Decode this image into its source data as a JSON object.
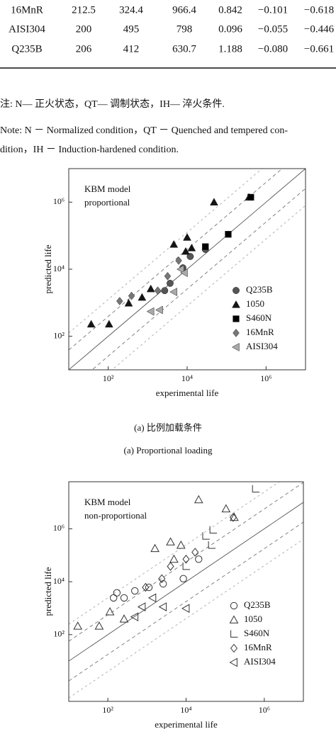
{
  "table": {
    "rows": [
      [
        "16MnR",
        "212.5",
        "324.4",
        "966.4",
        "0.842",
        "−0.101",
        "−0.618"
      ],
      [
        "AISI304",
        "200",
        "495",
        "798",
        "0.096",
        "−0.055",
        "−0.446"
      ],
      [
        "Q235B",
        "206",
        "412",
        "630.7",
        "1.188",
        "−0.080",
        "−0.661"
      ]
    ]
  },
  "notes": {
    "zh": "注: N— 正火状态，QT— 调制状态，IH— 淬火条件.",
    "en": [
      "Note: N － Normalized condition，QT － Quenched and tempered con-",
      "dition，IH － Induction-hardened condition."
    ]
  },
  "captions": {
    "zh": "(a) 比例加载条件",
    "en": "(a) Proportional loading"
  },
  "chart_data": [
    {
      "type": "scatter",
      "annotation": [
        "KBM model",
        "proportional"
      ],
      "xlabel": "experimental life",
      "ylabel": "predicted life",
      "log_x": true,
      "log_y": true,
      "legend": "lower right",
      "xlim": [
        10,
        10000000
      ],
      "ylim": [
        10,
        10000000
      ],
      "xticks": [
        {
          "value": 100,
          "label": "10²"
        },
        {
          "value": 10000,
          "label": "10⁴"
        },
        {
          "value": 1000000,
          "label": "10⁶"
        }
      ],
      "yticks": [
        {
          "value": 100,
          "label": "10²"
        },
        {
          "value": 10000,
          "label": "10⁴"
        },
        {
          "value": 1000000,
          "label": "10⁶"
        }
      ],
      "series": [
        {
          "name": "Q235B",
          "marker": "circle",
          "filled": true,
          "color": "#555555",
          "x": [
            2700,
            3700,
            12000,
            7800,
            29000
          ],
          "values": [
            2300,
            3800,
            24000,
            11000,
            39000
          ]
        },
        {
          "name": "1050",
          "marker": "triangle",
          "filled": true,
          "color": "#151515",
          "x": [
            37,
            105,
            330,
            720,
            1200,
            4600,
            9200,
            10000,
            13000,
            48000,
            370000
          ],
          "values": [
            230,
            230,
            970,
            1450,
            2600,
            55000,
            34000,
            89000,
            43000,
            1000000,
            1400000
          ]
        },
        {
          "name": "S460N",
          "marker": "square",
          "filled": true,
          "color": "#000000",
          "x": [
            29000,
            110000,
            410000
          ],
          "values": [
            47000,
            110000,
            1400000
          ]
        },
        {
          "name": "16MnR",
          "marker": "diamond",
          "filled": true,
          "color": "#777777",
          "x": [
            195,
            390,
            1800,
            3200,
            6100
          ],
          "values": [
            1120,
            1600,
            2300,
            6200,
            18000
          ]
        },
        {
          "name": "AISI304",
          "marker": "left",
          "filled": true,
          "color": "#aaaaaa",
          "x": [
            1200,
            2000,
            6900,
            8500,
            4600
          ],
          "values": [
            550,
            610,
            10000,
            7800,
            2100
          ]
        }
      ]
    },
    {
      "type": "scatter",
      "annotation": [
        "KBM model",
        "non-proportional"
      ],
      "xlabel": "experimental life",
      "ylabel": "predicted life",
      "log_x": true,
      "log_y": true,
      "legend": "lower right",
      "xlim": [
        10,
        10000000
      ],
      "ylim": [
        0.3,
        60000000
      ],
      "xticks": [
        {
          "value": 100,
          "label": "10²"
        },
        {
          "value": 10000,
          "label": "10⁴"
        },
        {
          "value": 1000000,
          "label": "10⁶"
        }
      ],
      "yticks": [
        {
          "value": 100,
          "label": "10²"
        },
        {
          "value": 10000,
          "label": "10⁴"
        },
        {
          "value": 1000000,
          "label": "10⁶"
        }
      ],
      "series": [
        {
          "name": "Q235B",
          "marker": "circle",
          "filled": false,
          "color": "#333333",
          "x": [
            140,
            170,
            260,
            490,
            1120,
            2600,
            8500,
            21000
          ],
          "values": [
            2450,
            3800,
            2450,
            4500,
            6100,
            8300,
            13000,
            71000
          ]
        },
        {
          "name": "1050",
          "marker": "triangle",
          "filled": false,
          "color": "#333333",
          "x": [
            17,
            60,
            113,
            260,
            1600,
            4000,
            4900,
            7400,
            21000,
            105000,
            170000
          ],
          "values": [
            210,
            210,
            730,
            390,
            180000,
            320000,
            71000,
            240000,
            12600000,
            5700000,
            2700000
          ]
        },
        {
          "name": "S460N",
          "marker": "ell",
          "filled": false,
          "color": "#333333",
          "x": [
            32000,
            49000,
            600000,
            45000,
            10000
          ],
          "values": [
            530000,
            900000,
            32000000,
            240000,
            38000
          ]
        },
        {
          "name": "16MnR",
          "marker": "diamond",
          "filled": false,
          "color": "#333333",
          "x": [
            920,
            2400,
            4000,
            10000,
            17000,
            160000
          ],
          "values": [
            6100,
            13000,
            38000,
            71000,
            130000,
            2700000
          ]
        },
        {
          "name": "AISI304",
          "marker": "left",
          "filled": false,
          "color": "#333333",
          "x": [
            490,
            750,
            1400,
            2600,
            10000
          ],
          "values": [
            470,
            1120,
            2450,
            1120,
            980
          ]
        }
      ]
    }
  ]
}
